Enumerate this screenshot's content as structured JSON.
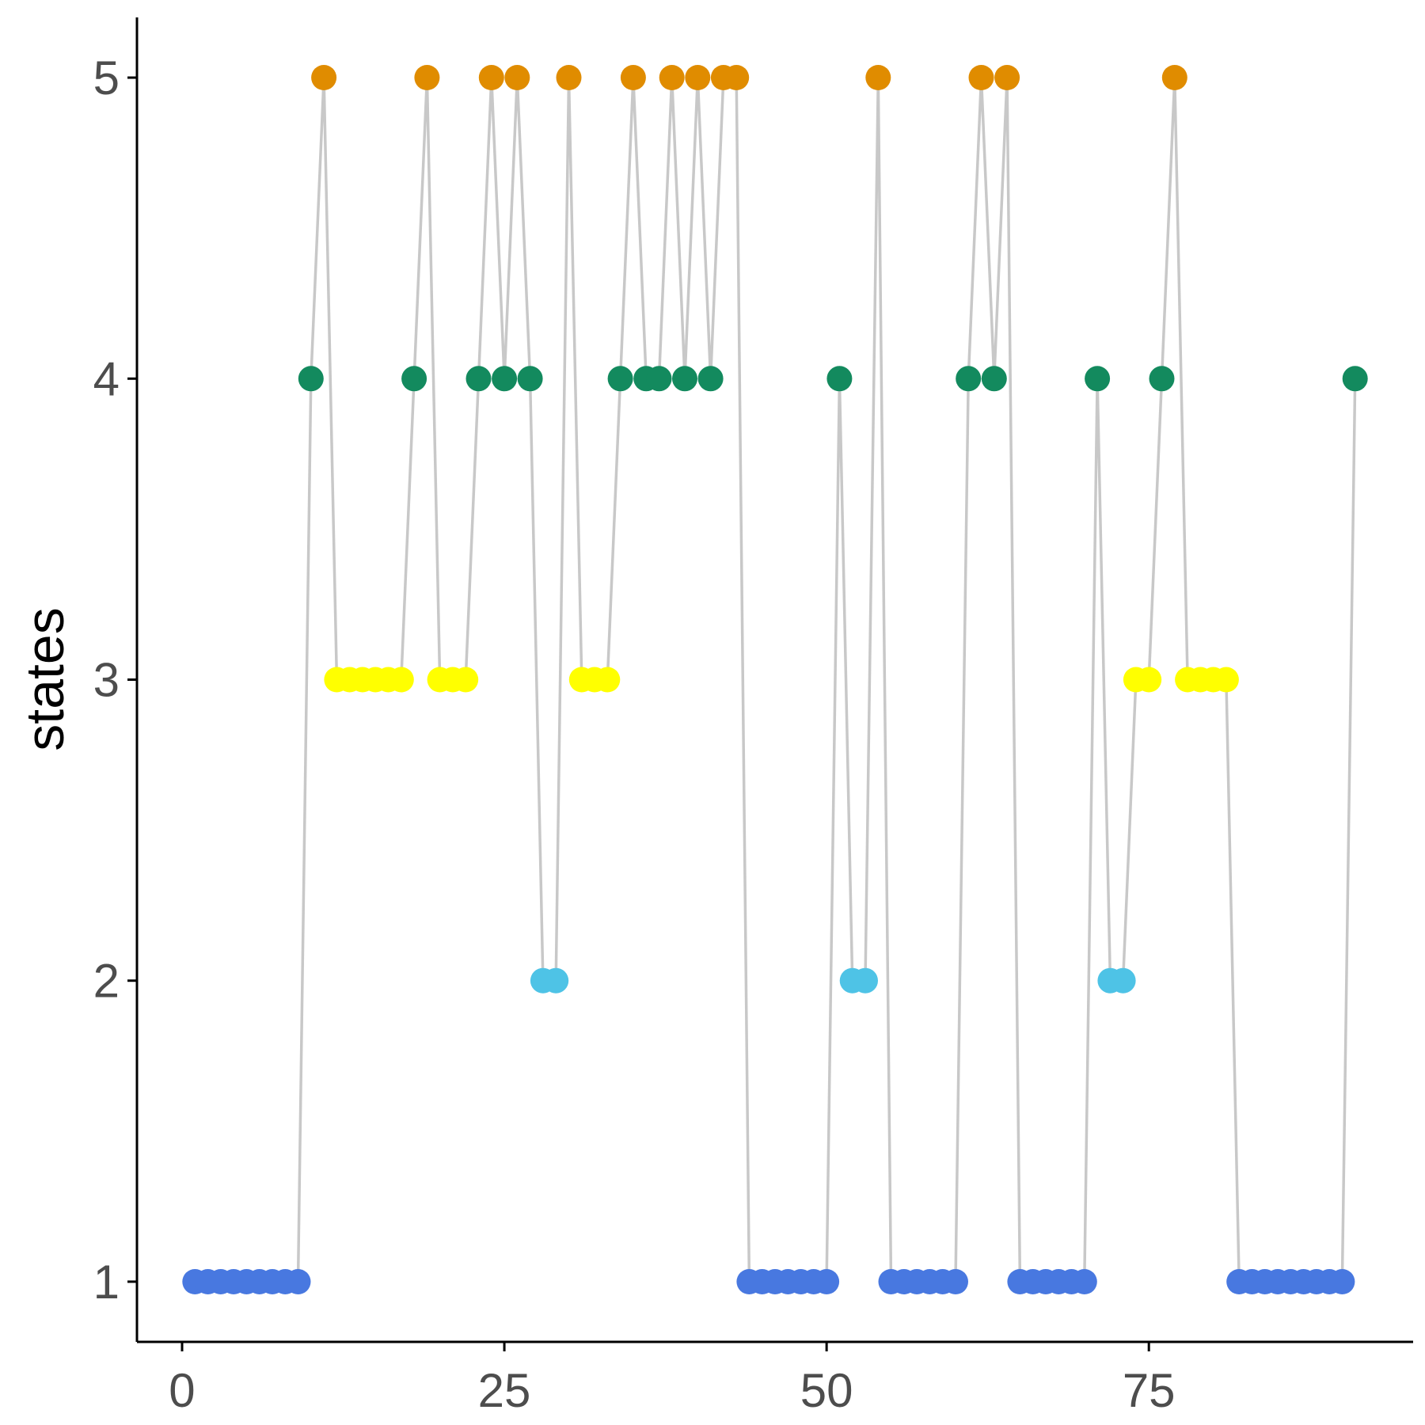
{
  "chart_data": {
    "type": "line",
    "title": "",
    "xlabel": "",
    "ylabel": "states",
    "xlim": [
      -3.5,
      95.5
    ],
    "ylim": [
      0.8,
      5.2
    ],
    "x_ticks": [
      0,
      25,
      50,
      75
    ],
    "y_ticks": [
      1,
      2,
      3,
      4,
      5
    ],
    "grid": false,
    "legend": "none",
    "colors": {
      "line": "#c8c8c8",
      "axis": "#000000",
      "tick_label": "#4d4d4d",
      "state_1": "#4878e0",
      "state_2": "#4ec3e6",
      "state_3": "#ffff00",
      "state_4": "#138a5e",
      "state_5": "#e08c00"
    },
    "series": [
      {
        "name": "states",
        "x": [
          1,
          2,
          3,
          4,
          5,
          6,
          7,
          8,
          9,
          10,
          11,
          12,
          13,
          14,
          15,
          16,
          17,
          18,
          19,
          20,
          21,
          22,
          23,
          24,
          25,
          26,
          27,
          28,
          29,
          30,
          31,
          32,
          33,
          34,
          35,
          36,
          37,
          38,
          39,
          40,
          41,
          42,
          43,
          44,
          45,
          46,
          47,
          48,
          49,
          50,
          51,
          52,
          53,
          54,
          55,
          56,
          57,
          58,
          59,
          60,
          61,
          62,
          63,
          64,
          65,
          66,
          67,
          68,
          69,
          70,
          71,
          72,
          73,
          74,
          75,
          76,
          77,
          78,
          79,
          80,
          81,
          82,
          83,
          84,
          85,
          86,
          87,
          88,
          89,
          90,
          91
        ],
        "y": [
          1,
          1,
          1,
          1,
          1,
          1,
          1,
          1,
          1,
          4,
          5,
          3,
          3,
          3,
          3,
          3,
          3,
          4,
          5,
          3,
          3,
          3,
          4,
          5,
          4,
          5,
          4,
          2,
          2,
          5,
          3,
          3,
          3,
          4,
          5,
          4,
          4,
          5,
          4,
          5,
          4,
          5,
          5,
          1,
          1,
          1,
          1,
          1,
          1,
          1,
          4,
          2,
          2,
          5,
          1,
          1,
          1,
          1,
          1,
          1,
          4,
          5,
          4,
          5,
          1,
          1,
          1,
          1,
          1,
          1,
          4,
          2,
          2,
          3,
          3,
          4,
          5,
          3,
          3,
          3,
          3,
          1,
          1,
          1,
          1,
          1,
          1,
          1,
          1,
          1,
          4
        ]
      }
    ]
  }
}
